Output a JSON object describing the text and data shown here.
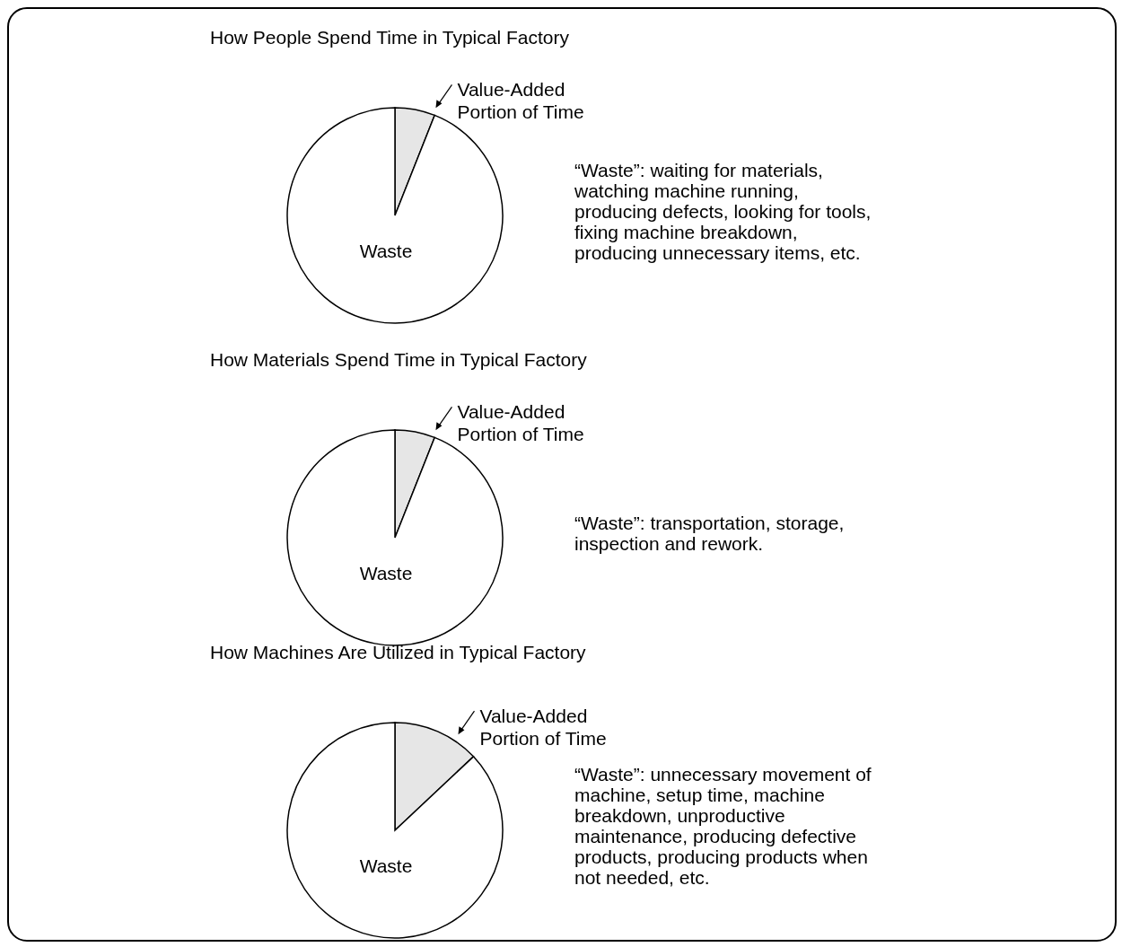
{
  "chart_data": [
    {
      "type": "pie",
      "title": "How People Spend Time in Typical Factory",
      "categories": [
        "Value-Added Portion of Time",
        "Waste"
      ],
      "values": [
        6,
        94
      ],
      "colors": [
        "#e6e6e6",
        "#ffffff"
      ],
      "annotations": [
        "“Waste”: waiting for materials, watching machine running, producing defects, looking for tools, fixing machine breakdown, producing unnecessary items, etc."
      ]
    },
    {
      "type": "pie",
      "title": "How Materials Spend Time in Typical Factory",
      "categories": [
        "Value-Added Portion of Time",
        "Waste"
      ],
      "values": [
        6,
        94
      ],
      "colors": [
        "#e6e6e6",
        "#ffffff"
      ],
      "annotations": [
        "“Waste”: transportation, storage, inspection and rework."
      ]
    },
    {
      "type": "pie",
      "title": "How Machines Are Utilized in Typical Factory",
      "categories": [
        "Value-Added Portion of Time",
        "Waste"
      ],
      "values": [
        13,
        87
      ],
      "colors": [
        "#e6e6e6",
        "#ffffff"
      ],
      "annotations": [
        "“Waste”: unnecessary movement of machine, setup time, machine breakdown, unproductive maintenance, producing defective products, producing products when not needed, etc."
      ]
    }
  ]
}
